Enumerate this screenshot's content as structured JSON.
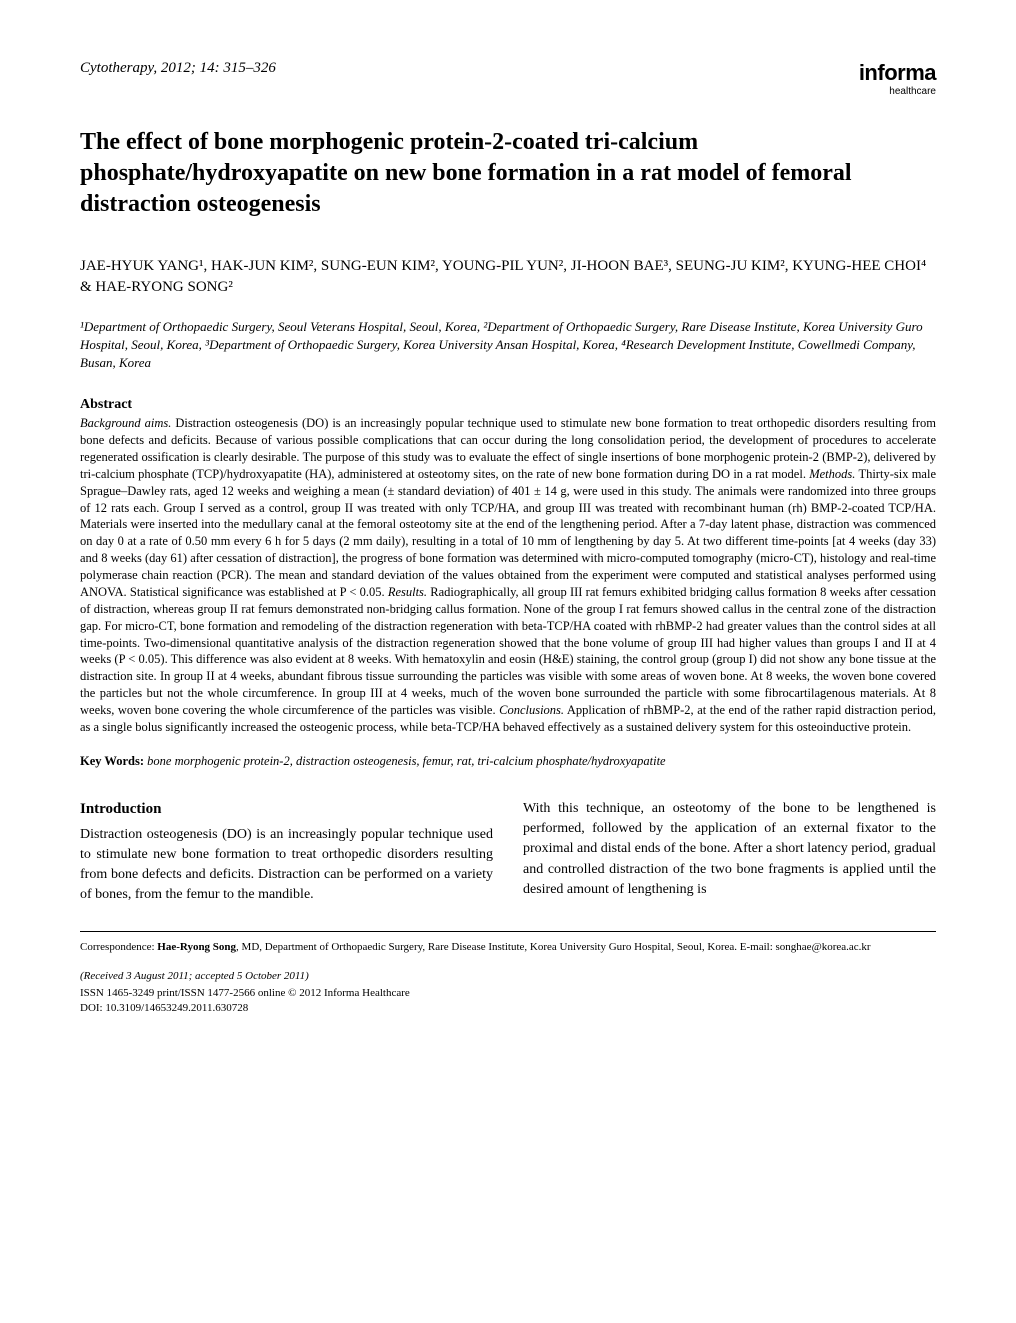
{
  "header": {
    "journal_ref": "Cytotherapy, 2012; 14: 315–326",
    "publisher_name": "informa",
    "publisher_sub": "healthcare"
  },
  "title": "The effect of bone morphogenic protein-2-coated tri-calcium phosphate/hydroxyapatite on new bone formation in a rat model of femoral distraction osteogenesis",
  "authors": "JAE-HYUK YANG¹, HAK-JUN KIM², SUNG-EUN KIM², YOUNG-PIL YUN², JI-HOON BAE³, SEUNG-JU KIM², KYUNG-HEE CHOI⁴ & HAE-RYONG SONG²",
  "affiliations": "¹Department of Orthopaedic Surgery, Seoul Veterans Hospital, Seoul, Korea, ²Department of Orthopaedic Surgery, Rare Disease Institute, Korea University Guro Hospital, Seoul, Korea, ³Department of Orthopaedic Surgery, Korea University Ansan Hospital, Korea, ⁴Research Development Institute, Cowellmedi Company, Busan, Korea",
  "abstract": {
    "heading": "Abstract",
    "background_label": "Background aims.",
    "background": " Distraction osteogenesis (DO) is an increasingly popular technique used to stimulate new bone formation to treat orthopedic disorders resulting from bone defects and deficits. Because of various possible complications that can occur during the long consolidation period, the development of procedures to accelerate regenerated ossification is clearly desirable. The purpose of this study was to evaluate the effect of single insertions of bone morphogenic protein-2 (BMP-2), delivered by tri-calcium phosphate (TCP)/hydroxyapatite (HA), administered at osteotomy sites, on the rate of new bone formation during DO in a rat model. ",
    "methods_label": "Methods.",
    "methods": " Thirty-six male Sprague–Dawley rats, aged 12 weeks and weighing a mean (± standard deviation) of 401 ± 14 g, were used in this study. The animals were randomized into three groups of 12 rats each. Group I served as a control, group II was treated with only TCP/HA, and group III was treated with recombinant human (rh) BMP-2-coated TCP/HA. Materials were inserted into the medullary canal at the femoral osteotomy site at the end of the lengthening period. After a 7-day latent phase, distraction was commenced on day 0 at a rate of 0.50 mm every 6 h for 5 days (2 mm daily), resulting in a total of 10 mm of lengthening by day 5. At two different time-points [at 4 weeks (day 33) and 8 weeks (day 61) after cessation of distraction], the progress of bone formation was determined with micro-computed tomography (micro-CT), histology and real-time polymerase chain reaction (PCR). The mean and standard deviation of the values obtained from the experiment were computed and statistical analyses performed using ",
    "anova": "ANOVA",
    "methods2": ". Statistical significance was established at P < 0.05. ",
    "results_label": "Results.",
    "results": " Radiographically, all group III rat femurs exhibited bridging callus formation 8 weeks after cessation of distraction, whereas group II rat femurs demonstrated non-bridging callus formation. None of the group I rat femurs showed callus in the central zone of the distraction gap. For micro-CT, bone formation and remodeling of the distraction regeneration with beta-TCP/HA coated with rhBMP-2 had greater values than the control sides at all time-points. Two-dimensional quantitative analysis of the distraction regeneration showed that the bone volume of group III had higher values than groups I and II at 4 weeks (P < 0.05). This difference was also evident at 8 weeks. With hematoxylin and eosin (H&E) staining, the control group (group I) did not show any bone tissue at the distraction site. In group II at 4 weeks, abundant fibrous tissue surrounding the particles was visible with some areas of woven bone. At 8 weeks, the woven bone covered the particles but not the whole circumference. In group III at 4 weeks, much of the woven bone surrounded the particle with some fibrocartilagenous materials. At 8 weeks, woven bone covering the whole circumference of the particles was visible. ",
    "conclusions_label": "Conclusions.",
    "conclusions": " Application of rhBMP-2, at the end of the rather rapid distraction period, as a single bolus significantly increased the osteogenic process, while beta-TCP/HA behaved effectively as a sustained delivery system for this osteoinductive protein."
  },
  "keywords": {
    "label": "Key Words:",
    "text": "  bone morphogenic protein-2, distraction osteogenesis, femur, rat, tri-calcium phosphate/hydroxyapatite"
  },
  "intro": {
    "heading": "Introduction",
    "col1": "Distraction osteogenesis (DO) is an increasingly popular technique used to stimulate new bone formation to treat orthopedic disorders resulting from bone defects and deficits. Distraction can be performed on a variety of bones, from the femur to the mandible.",
    "col2": "With this technique, an osteotomy of the bone to be lengthened is performed, followed by the application of an external fixator to the proximal and distal ends of the bone. After a short latency period, gradual and controlled distraction of the two bone fragments is applied until the desired amount of lengthening is"
  },
  "footer": {
    "correspondence_label": "Correspondence: ",
    "correspondence_name": "Hae-Ryong Song",
    "correspondence_text": ", MD, Department of Orthopaedic Surgery, Rare Disease Institute, Korea University Guro Hospital, Seoul, Korea. E-mail: songhae@korea.ac.kr",
    "received": "(Received 3 August 2011; accepted 5 October 2011)",
    "issn": "ISSN 1465-3249 print/ISSN 1477-2566 online © 2012 Informa Healthcare",
    "doi": "DOI: 10.3109/14653249.2011.630728"
  },
  "colors": {
    "text": "#000000",
    "background": "#ffffff",
    "rule": "#000000"
  }
}
